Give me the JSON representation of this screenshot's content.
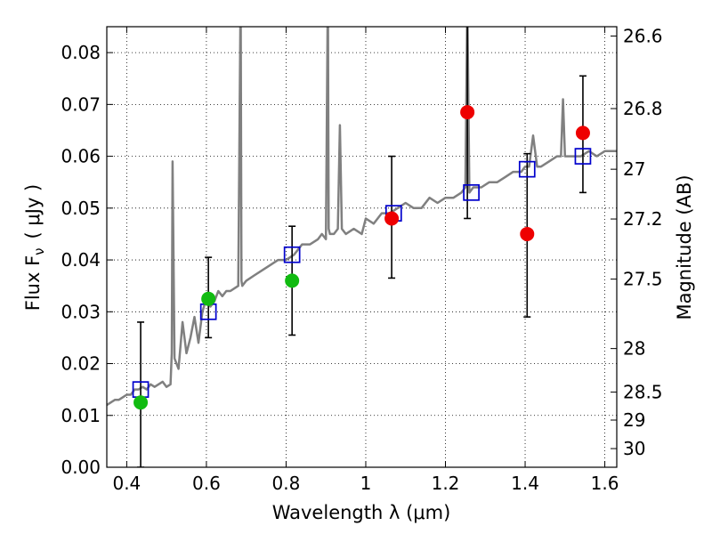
{
  "chart_data": {
    "type": "scatter",
    "xlabel": "Wavelength  λ (μm)",
    "ylabel": "Flux  F",
    "ylabel_sub": "ν",
    "ylabel_unit": "( μJy )",
    "y2label": "Magnitude (AB)",
    "xlim": [
      0.35,
      1.63
    ],
    "ylim": [
      0.0,
      0.085
    ],
    "grid": true,
    "x_ticks": [
      0.4,
      0.6,
      0.8,
      1.0,
      1.2,
      1.4,
      1.6
    ],
    "x_tick_labels": [
      "0.4",
      "0.6",
      "0.8",
      "1",
      "1.2",
      "1.4",
      "1.6"
    ],
    "y_ticks": [
      0.0,
      0.01,
      0.02,
      0.03,
      0.04,
      0.05,
      0.06,
      0.07,
      0.08
    ],
    "y_tick_labels": [
      "0.00",
      "0.01",
      "0.02",
      "0.03",
      "0.04",
      "0.05",
      "0.06",
      "0.07",
      "0.08"
    ],
    "mag_ticks": [
      {
        "label": "26.6",
        "flux": 0.0832
      },
      {
        "label": "26.8",
        "flux": 0.0692
      },
      {
        "label": "27",
        "flux": 0.0575
      },
      {
        "label": "27.2",
        "flux": 0.0479
      },
      {
        "label": "27.5",
        "flux": 0.0363
      },
      {
        "label": "28",
        "flux": 0.0229
      },
      {
        "label": "28.5",
        "flux": 0.0145
      },
      {
        "label": "29",
        "flux": 0.0091
      },
      {
        "label": "30",
        "flux": 0.0036
      }
    ],
    "colors": {
      "spectrum": "#808080",
      "model": "#0000cc",
      "green": "#11bb11",
      "red": "#ee0000",
      "errorbar": "#000000",
      "grid": "#000000"
    },
    "series": [
      {
        "name": "model spectrum",
        "type": "line",
        "x": [
          0.35,
          0.36,
          0.37,
          0.38,
          0.39,
          0.4,
          0.41,
          0.42,
          0.43,
          0.44,
          0.45,
          0.46,
          0.47,
          0.48,
          0.49,
          0.5,
          0.51,
          0.513,
          0.515,
          0.52,
          0.53,
          0.54,
          0.55,
          0.56,
          0.57,
          0.58,
          0.59,
          0.6,
          0.61,
          0.62,
          0.63,
          0.64,
          0.65,
          0.66,
          0.67,
          0.68,
          0.686,
          0.688,
          0.69,
          0.7,
          0.72,
          0.74,
          0.76,
          0.78,
          0.8,
          0.82,
          0.84,
          0.86,
          0.88,
          0.89,
          0.9,
          0.905,
          0.907,
          0.91,
          0.92,
          0.93,
          0.935,
          0.94,
          0.95,
          0.97,
          0.99,
          1.0,
          1.02,
          1.04,
          1.06,
          1.08,
          1.1,
          1.12,
          1.14,
          1.16,
          1.18,
          1.2,
          1.22,
          1.24,
          1.25,
          1.255,
          1.26,
          1.27,
          1.29,
          1.31,
          1.33,
          1.35,
          1.37,
          1.39,
          1.4,
          1.41,
          1.42,
          1.43,
          1.44,
          1.46,
          1.48,
          1.49,
          1.495,
          1.5,
          1.52,
          1.54,
          1.56,
          1.58,
          1.6,
          1.62,
          1.63
        ],
        "y": [
          0.012,
          0.0125,
          0.013,
          0.013,
          0.0135,
          0.014,
          0.014,
          0.015,
          0.015,
          0.0155,
          0.015,
          0.016,
          0.0155,
          0.016,
          0.0165,
          0.0155,
          0.016,
          0.022,
          0.059,
          0.021,
          0.019,
          0.028,
          0.022,
          0.025,
          0.029,
          0.024,
          0.03,
          0.0325,
          0.031,
          0.032,
          0.034,
          0.033,
          0.034,
          0.034,
          0.0345,
          0.035,
          0.093,
          0.036,
          0.035,
          0.036,
          0.037,
          0.038,
          0.039,
          0.04,
          0.04,
          0.041,
          0.043,
          0.043,
          0.044,
          0.045,
          0.044,
          0.093,
          0.046,
          0.045,
          0.045,
          0.046,
          0.066,
          0.046,
          0.045,
          0.046,
          0.045,
          0.048,
          0.047,
          0.049,
          0.049,
          0.05,
          0.051,
          0.05,
          0.05,
          0.052,
          0.051,
          0.052,
          0.052,
          0.053,
          0.054,
          0.09,
          0.053,
          0.054,
          0.054,
          0.055,
          0.055,
          0.056,
          0.057,
          0.057,
          0.058,
          0.058,
          0.064,
          0.058,
          0.058,
          0.059,
          0.06,
          0.06,
          0.071,
          0.06,
          0.06,
          0.06,
          0.061,
          0.06,
          0.061,
          0.061,
          0.061
        ]
      },
      {
        "name": "model photometry",
        "type": "open-square",
        "x": [
          0.435,
          0.605,
          0.815,
          1.07,
          1.265,
          1.405,
          1.545
        ],
        "y": [
          0.015,
          0.03,
          0.041,
          0.049,
          0.053,
          0.0575,
          0.06
        ]
      },
      {
        "name": "observed (green)",
        "type": "point",
        "x": [
          0.435,
          0.605,
          0.815
        ],
        "y": [
          0.0125,
          0.0325,
          0.036
        ],
        "err_low": [
          0.0125,
          0.0075,
          0.0105
        ],
        "err_high": [
          0.0155,
          0.008,
          0.0105
        ]
      },
      {
        "name": "observed (red)",
        "type": "point",
        "x": [
          1.065,
          1.255,
          1.405,
          1.545
        ],
        "y": [
          0.048,
          0.0685,
          0.045,
          0.0645
        ],
        "err_low": [
          0.0115,
          0.0205,
          0.016,
          0.0115
        ],
        "err_high": [
          0.012,
          0.025,
          0.0155,
          0.011
        ]
      }
    ]
  }
}
